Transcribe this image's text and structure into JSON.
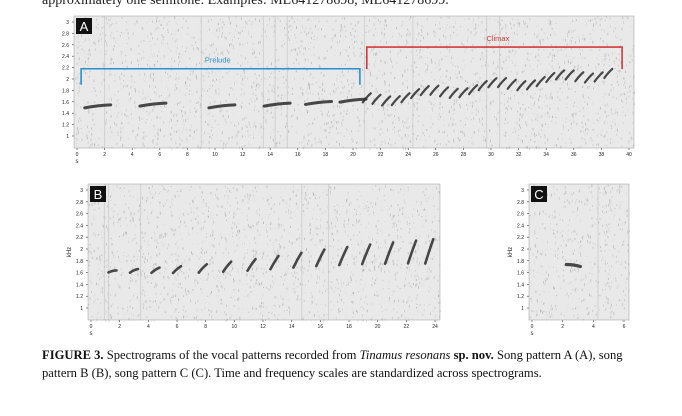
{
  "top_text": "approximately one semitone. Examples: ML641278698, ML641278699.",
  "panels": {
    "A": {
      "letter": "A",
      "ylabel": "kHz",
      "xlabel": "s",
      "yticks": [
        "3",
        "2.8",
        "2.6",
        "2.4",
        "2.2",
        "2",
        "1.8",
        "1.6",
        "1.4",
        "1.2",
        "1"
      ],
      "xticks": [
        "0",
        "2",
        "4",
        "6",
        "8",
        "10",
        "12",
        "14",
        "16",
        "18",
        "20",
        "22",
        "24",
        "26",
        "28",
        "30",
        "32",
        "34",
        "36",
        "38",
        "40"
      ],
      "xmax": 40,
      "prelude_label": "Prelude",
      "climax_label": "Climax",
      "prelude_color": "#2a8fd0",
      "climax_color": "#d23a3a"
    },
    "B": {
      "letter": "B",
      "ylabel": "kHz",
      "xlabel": "s",
      "yticks": [
        "3",
        "2.8",
        "2.6",
        "2.4",
        "2.2",
        "2",
        "1.8",
        "1.6",
        "1.4",
        "1.2",
        "1"
      ],
      "xticks": [
        "0",
        "2",
        "4",
        "6",
        "8",
        "10",
        "12",
        "14",
        "16",
        "18",
        "20",
        "22",
        "24"
      ],
      "xmax": 24
    },
    "C": {
      "letter": "C",
      "ylabel": "kHz",
      "xlabel": "s",
      "yticks": [
        "3",
        "2.8",
        "2.6",
        "2.4",
        "2.2",
        "2",
        "1.8",
        "1.6",
        "1.4",
        "1.2",
        "1"
      ],
      "xticks": [
        "0",
        "2",
        "4",
        "6"
      ],
      "xmax": 6
    }
  },
  "caption": {
    "figure_label": "FIGURE 3.",
    "text1": " Spectrograms of the vocal patterns recorded from ",
    "species": "Tinamus resonans",
    "sp_nov": " sp. nov.",
    "text2": " Song pattern A (A), song pattern B (B), song pattern C (C). Time and frequency scales are standardized across spectrograms."
  }
}
